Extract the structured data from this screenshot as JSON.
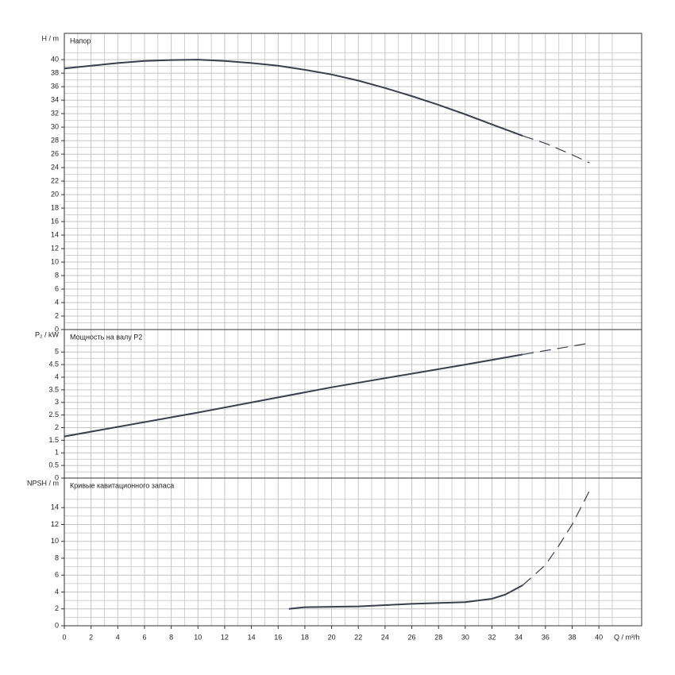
{
  "chart_data": [
    {
      "type": "line",
      "title": "Напор",
      "ylabel": "H / m",
      "xlim": [
        0,
        43.2
      ],
      "ylim": [
        0,
        43.9
      ],
      "yticks": [
        0,
        2,
        4,
        6,
        8,
        10,
        12,
        14,
        16,
        18,
        20,
        22,
        24,
        26,
        28,
        30,
        32,
        34,
        36,
        38,
        40
      ],
      "grid": true,
      "series": [
        {
          "color": "#3a3f4b",
          "dashed": false,
          "x": [
            0,
            2,
            4,
            6,
            8,
            10,
            12,
            14,
            16,
            18,
            20,
            22,
            24,
            26,
            28,
            30,
            32,
            34.3
          ],
          "values": [
            38.7,
            39.1,
            39.5,
            39.8,
            39.95,
            40,
            39.8,
            39.5,
            39.1,
            38.5,
            37.8,
            36.9,
            35.8,
            34.6,
            33.3,
            31.9,
            30.4,
            28.7
          ]
        },
        {
          "color": "#3a3f4b",
          "dashed": true,
          "x": [
            34.3,
            36,
            38,
            39.3
          ],
          "values": [
            28.7,
            27.6,
            25.9,
            24.7
          ]
        }
      ]
    },
    {
      "type": "line",
      "title": "Мощность на валу P2",
      "ylabel": "P₂ / kW",
      "xlim": [
        0,
        43.2
      ],
      "ylim": [
        0,
        5.89
      ],
      "yticks": [
        0,
        0.5,
        1,
        1.5,
        2,
        2.5,
        3,
        3.5,
        4,
        4.5,
        5
      ],
      "grid": true,
      "series": [
        {
          "color": "#3a3f4b",
          "dashed": false,
          "x": [
            0,
            10,
            20,
            30,
            34.3
          ],
          "values": [
            1.65,
            2.6,
            3.6,
            4.5,
            4.9
          ]
        },
        {
          "color": "#3a3f4b",
          "dashed": true,
          "x": [
            34.3,
            39.3
          ],
          "values": [
            4.9,
            5.35
          ]
        }
      ]
    },
    {
      "type": "line",
      "title": "Кривые кавитационного запаса",
      "ylabel": "NPSH / m",
      "xlabel": "Q / m³/h",
      "xlim": [
        0,
        43.2
      ],
      "ylim": [
        0,
        17.5
      ],
      "xticks": [
        0,
        2,
        4,
        6,
        8,
        10,
        12,
        14,
        16,
        18,
        20,
        22,
        24,
        26,
        28,
        30,
        32,
        34,
        36,
        38,
        40
      ],
      "yticks": [
        0,
        2,
        4,
        6,
        8,
        10,
        12,
        14
      ],
      "grid": true,
      "series": [
        {
          "color": "#3a3f4b",
          "dashed": false,
          "x": [
            16.8,
            18,
            22,
            26,
            30,
            32,
            33,
            34.3
          ],
          "values": [
            2.0,
            2.2,
            2.3,
            2.6,
            2.8,
            3.2,
            3.7,
            4.8
          ]
        },
        {
          "color": "#3a3f4b",
          "dashed": true,
          "x": [
            34.3,
            36,
            37,
            38,
            39.3
          ],
          "values": [
            4.8,
            7.2,
            9.5,
            12.0,
            16.0
          ]
        }
      ]
    }
  ]
}
